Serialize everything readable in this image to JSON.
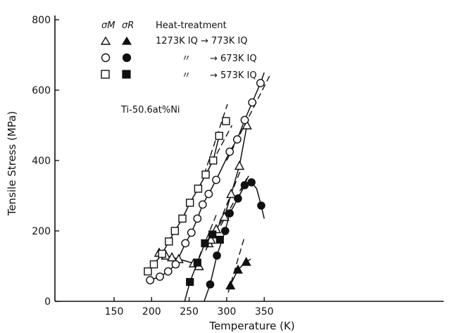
{
  "chart_data": {
    "type": "scatter",
    "xlabel": "Temperature (K)",
    "ylabel": "Tensile Stress (MPa)",
    "xlim": [
      135,
      362
    ],
    "ylim": [
      0,
      840
    ],
    "x_ticks": [
      150,
      200,
      250,
      300,
      350
    ],
    "y_ticks": [
      0,
      200,
      400,
      600,
      800
    ],
    "annotation": "Ti-50.6at%Ni",
    "legend": {
      "header_open": "σM",
      "header_filled": "σR",
      "header_treatment": "Heat-treatment",
      "rows": [
        {
          "marker": "triangle",
          "treatment": "1273K IQ → 773K IQ"
        },
        {
          "marker": "circle",
          "ditto": "〃",
          "treatment": "→ 673K IQ"
        },
        {
          "marker": "square",
          "ditto": "〃",
          "treatment": "→ 573K IQ"
        }
      ]
    },
    "series": [
      {
        "marker": "triangle",
        "fill": "open",
        "points": [
          [
            210,
            138
          ],
          [
            219,
            130
          ],
          [
            227,
            125
          ],
          [
            236,
            120
          ],
          [
            256,
            108
          ],
          [
            263,
            100
          ],
          [
            276,
            165
          ],
          [
            279,
            175
          ],
          [
            286,
            205
          ],
          [
            297,
            240
          ],
          [
            306,
            305
          ],
          [
            317,
            385
          ],
          [
            327,
            500
          ]
        ]
      },
      {
        "marker": "triangle",
        "fill": "filled",
        "points": [
          [
            305,
            45
          ],
          [
            315,
            90
          ],
          [
            326,
            112
          ]
        ]
      },
      {
        "marker": "circle",
        "fill": "open",
        "points": [
          [
            198,
            60
          ],
          [
            211,
            70
          ],
          [
            222,
            85
          ],
          [
            232,
            105
          ],
          [
            245,
            165
          ],
          [
            253,
            195
          ],
          [
            261,
            235
          ],
          [
            268,
            275
          ],
          [
            276,
            305
          ],
          [
            286,
            345
          ],
          [
            304,
            425
          ],
          [
            314,
            460
          ],
          [
            324,
            515
          ],
          [
            334,
            565
          ],
          [
            345,
            620
          ]
        ]
      },
      {
        "marker": "circle",
        "fill": "filled",
        "points": [
          [
            278,
            48
          ],
          [
            287,
            130
          ],
          [
            298,
            200
          ],
          [
            304,
            250
          ],
          [
            315,
            292
          ],
          [
            324,
            330
          ],
          [
            333,
            338
          ],
          [
            346,
            272
          ]
        ]
      },
      {
        "marker": "square",
        "fill": "open",
        "points": [
          [
            195,
            85
          ],
          [
            203,
            105
          ],
          [
            214,
            135
          ],
          [
            223,
            170
          ],
          [
            231,
            200
          ],
          [
            241,
            235
          ],
          [
            251,
            280
          ],
          [
            262,
            320
          ],
          [
            272,
            360
          ],
          [
            282,
            400
          ],
          [
            290,
            470
          ],
          [
            299,
            512
          ]
        ]
      },
      {
        "marker": "square",
        "fill": "filled",
        "points": [
          [
            251,
            55
          ],
          [
            261,
            110
          ],
          [
            271,
            165
          ],
          [
            281,
            190
          ],
          [
            291,
            175
          ]
        ]
      }
    ]
  }
}
